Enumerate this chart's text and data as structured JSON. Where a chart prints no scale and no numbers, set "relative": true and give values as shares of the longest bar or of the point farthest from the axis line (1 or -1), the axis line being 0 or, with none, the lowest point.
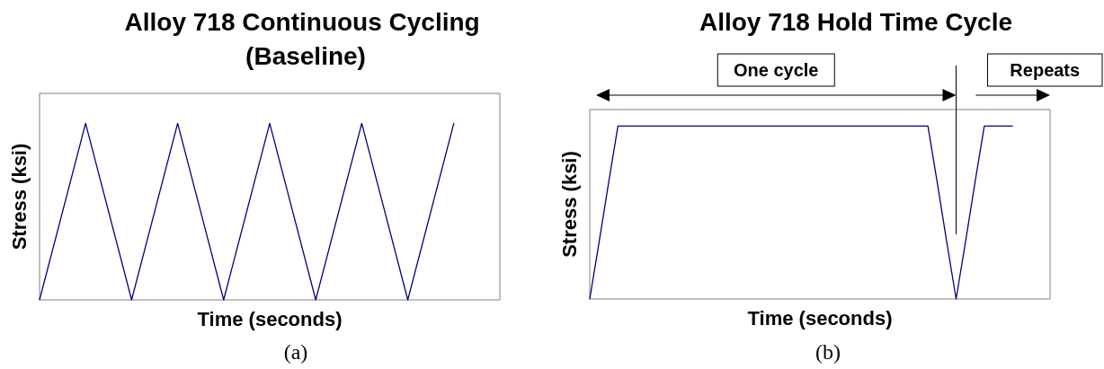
{
  "chart_data": [
    {
      "type": "line",
      "title": "Alloy 718 Continuous Cycling (Baseline)",
      "xlabel": "Time (seconds)",
      "ylabel": "Stress (ksi)",
      "relative": true,
      "tick_labels": false,
      "categories": [
        null,
        null,
        null,
        null,
        null,
        null,
        null,
        null,
        null,
        null,
        null
      ],
      "series": [
        {
          "color": "#000080",
          "values": [
            0,
            1,
            0,
            1,
            0,
            1,
            0,
            1,
            0,
            1,
            null
          ]
        }
      ],
      "annotations": [
        "(a)"
      ]
    },
    {
      "type": "line",
      "title": "Alloy 718 Hold Time Cycle",
      "xlabel": "Time (seconds)",
      "ylabel": "Stress (ksi)",
      "relative": true,
      "tick_labels": false,
      "categories": [
        null,
        null,
        null,
        null,
        null,
        null,
        null,
        null,
        null,
        null,
        null,
        null,
        null,
        null,
        null,
        null,
        null,
        null,
        null,
        null,
        null,
        null,
        null,
        null,
        null,
        null,
        null,
        null,
        null,
        null,
        null,
        null,
        null,
        null,
        null,
        null,
        null,
        null,
        null,
        null,
        null,
        null,
        null,
        null,
        null,
        null,
        null,
        null,
        null,
        null
      ],
      "series": [
        {
          "color": "#000080",
          "values": [
            0,
            0.33,
            0.67,
            1,
            1,
            1,
            1,
            1,
            1,
            1,
            1,
            1,
            1,
            1,
            1,
            1,
            1,
            1,
            1,
            1,
            1,
            1,
            1,
            1,
            1,
            1,
            1,
            1,
            1,
            1,
            1,
            1,
            1,
            1,
            1,
            1,
            1,
            0.67,
            0.33,
            0,
            0.33,
            0.67,
            1,
            1,
            1,
            1,
            null,
            null,
            null,
            null
          ]
        }
      ],
      "annotations": [
        "One cycle",
        "Repeats",
        "(b)"
      ]
    }
  ]
}
